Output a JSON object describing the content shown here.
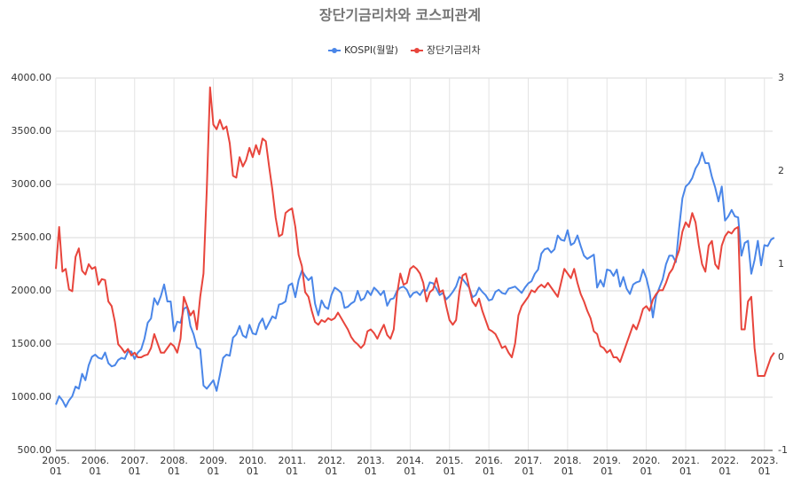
{
  "chart_data": {
    "type": "line",
    "title": "장단기금리차와 코스피관계",
    "categories": [
      "2005.\n01",
      null,
      null,
      null,
      null,
      null,
      null,
      null,
      null,
      null,
      null,
      null,
      "2006.\n01",
      null,
      null,
      null,
      null,
      null,
      null,
      null,
      null,
      null,
      null,
      null,
      "2007.\n01",
      null,
      null,
      null,
      null,
      null,
      null,
      null,
      null,
      null,
      null,
      null,
      "2008.\n01",
      null,
      null,
      null,
      null,
      null,
      null,
      null,
      null,
      null,
      null,
      null,
      "2009.\n01",
      null,
      null,
      null,
      null,
      null,
      null,
      null,
      null,
      null,
      null,
      null,
      "2010.\n01",
      null,
      null,
      null,
      null,
      null,
      null,
      null,
      null,
      null,
      null,
      null,
      "2011.\n01",
      null,
      null,
      null,
      null,
      null,
      null,
      null,
      null,
      null,
      null,
      null,
      "2012.\n01",
      null,
      null,
      null,
      null,
      null,
      null,
      null,
      null,
      null,
      null,
      null,
      "2013.\n01",
      null,
      null,
      null,
      null,
      null,
      null,
      null,
      null,
      null,
      null,
      null,
      "2014.\n01",
      null,
      null,
      null,
      null,
      null,
      null,
      null,
      null,
      null,
      null,
      null,
      "2015.\n01",
      null,
      null,
      null,
      null,
      null,
      null,
      null,
      null,
      null,
      null,
      null,
      "2016.\n01",
      null,
      null,
      null,
      null,
      null,
      null,
      null,
      null,
      null,
      null,
      null,
      "2017.\n01",
      null,
      null,
      null,
      null,
      null,
      null,
      null,
      null,
      null,
      null,
      null,
      "2018.\n01",
      null,
      null,
      null,
      null,
      null,
      null,
      null,
      null,
      null,
      null,
      null,
      "2019.\n01",
      null,
      null,
      null,
      null,
      null,
      null,
      null,
      null,
      null,
      null,
      null,
      "2020.\n01",
      null,
      null,
      null,
      null,
      null,
      null,
      null,
      null,
      null,
      null,
      null,
      "2021.\n01",
      null,
      null,
      null,
      null,
      null,
      null,
      null,
      null,
      null,
      null,
      null,
      "2022.\n01",
      null,
      null,
      null,
      null,
      null,
      null,
      null,
      null,
      null,
      null,
      null,
      "2023.\n01",
      null,
      null,
      null
    ],
    "series": [
      {
        "name": "KOSPI(월말)",
        "color": "#4a86e8",
        "axis": "y",
        "values": [
          930,
          1010,
          970,
          910,
          970,
          1010,
          1100,
          1080,
          1220,
          1160,
          1300,
          1380,
          1400,
          1370,
          1360,
          1420,
          1320,
          1290,
          1300,
          1350,
          1370,
          1360,
          1430,
          1430,
          1360,
          1420,
          1450,
          1550,
          1700,
          1740,
          1930,
          1870,
          1950,
          2060,
          1900,
          1900,
          1620,
          1710,
          1700,
          1830,
          1850,
          1670,
          1590,
          1470,
          1450,
          1110,
          1080,
          1120,
          1160,
          1060,
          1210,
          1370,
          1400,
          1390,
          1560,
          1590,
          1670,
          1580,
          1560,
          1680,
          1600,
          1590,
          1690,
          1740,
          1640,
          1700,
          1760,
          1740,
          1870,
          1880,
          1900,
          2050,
          2070,
          1940,
          2100,
          2190,
          2140,
          2100,
          2130,
          1880,
          1770,
          1910,
          1850,
          1830,
          1960,
          2030,
          2010,
          1980,
          1840,
          1850,
          1880,
          1900,
          2000,
          1910,
          1930,
          2000,
          1960,
          2030,
          2000,
          1960,
          2000,
          1860,
          1920,
          1930,
          2000,
          2030,
          2040,
          2010,
          1940,
          1980,
          1990,
          1960,
          2010,
          2000,
          2080,
          2070,
          2020,
          1960,
          1980,
          1920,
          1950,
          1990,
          2040,
          2130,
          2110,
          2070,
          2030,
          1940,
          1960,
          2030,
          1990,
          1960,
          1910,
          1920,
          1990,
          2010,
          1980,
          1970,
          2020,
          2030,
          2040,
          2010,
          1980,
          2030,
          2070,
          2090,
          2160,
          2200,
          2350,
          2390,
          2400,
          2360,
          2390,
          2520,
          2480,
          2470,
          2570,
          2430,
          2450,
          2520,
          2420,
          2330,
          2300,
          2320,
          2340,
          2030,
          2100,
          2040,
          2200,
          2190,
          2140,
          2200,
          2040,
          2130,
          2020,
          1970,
          2060,
          2080,
          2090,
          2200,
          2120,
          1990,
          1750,
          1950,
          2030,
          2110,
          2250,
          2330,
          2330,
          2270,
          2590,
          2870,
          2980,
          3010,
          3060,
          3150,
          3200,
          3300,
          3200,
          3200,
          3070,
          2970,
          2840,
          2980,
          2660,
          2700,
          2760,
          2700,
          2690,
          2330,
          2450,
          2470,
          2160,
          2290,
          2470,
          2240,
          2430,
          2420,
          2480,
          2500
        ]
      },
      {
        "name": "장단기금리차",
        "color": "#e8453c",
        "axis": "y2",
        "values": [
          0.95,
          1.4,
          0.92,
          0.95,
          0.73,
          0.71,
          1.08,
          1.17,
          0.93,
          0.89,
          1.0,
          0.95,
          0.97,
          0.78,
          0.84,
          0.83,
          0.6,
          0.55,
          0.38,
          0.14,
          0.1,
          0.05,
          0.09,
          0.02,
          0.05,
          0.0,
          0.0,
          0.02,
          0.03,
          0.1,
          0.25,
          0.15,
          0.05,
          0.05,
          0.1,
          0.15,
          0.12,
          0.05,
          0.2,
          0.65,
          0.55,
          0.45,
          0.5,
          0.3,
          0.65,
          0.9,
          1.8,
          2.9,
          2.5,
          2.45,
          2.55,
          2.45,
          2.48,
          2.3,
          1.95,
          1.93,
          2.15,
          2.05,
          2.12,
          2.25,
          2.15,
          2.28,
          2.18,
          2.35,
          2.32,
          2.05,
          1.8,
          1.5,
          1.3,
          1.32,
          1.55,
          1.58,
          1.6,
          1.4,
          1.1,
          0.98,
          0.7,
          0.65,
          0.5,
          0.38,
          0.35,
          0.4,
          0.38,
          0.42,
          0.4,
          0.42,
          0.48,
          0.42,
          0.36,
          0.3,
          0.22,
          0.17,
          0.14,
          0.1,
          0.14,
          0.28,
          0.3,
          0.26,
          0.2,
          0.28,
          0.35,
          0.24,
          0.2,
          0.3,
          0.68,
          0.9,
          0.78,
          0.8,
          0.95,
          0.98,
          0.95,
          0.9,
          0.8,
          0.6,
          0.7,
          0.73,
          0.85,
          0.7,
          0.72,
          0.55,
          0.4,
          0.35,
          0.4,
          0.7,
          0.88,
          0.9,
          0.75,
          0.6,
          0.55,
          0.63,
          0.5,
          0.4,
          0.3,
          0.28,
          0.25,
          0.18,
          0.1,
          0.12,
          0.05,
          0.0,
          0.15,
          0.45,
          0.55,
          0.6,
          0.65,
          0.72,
          0.7,
          0.75,
          0.78,
          0.75,
          0.8,
          0.75,
          0.7,
          0.65,
          0.8,
          0.95,
          0.9,
          0.85,
          0.95,
          0.8,
          0.68,
          0.6,
          0.5,
          0.42,
          0.28,
          0.25,
          0.12,
          0.1,
          0.05,
          0.08,
          0.0,
          0.0,
          -0.05,
          0.05,
          0.15,
          0.25,
          0.35,
          0.3,
          0.4,
          0.52,
          0.55,
          0.5,
          0.62,
          0.68,
          0.72,
          0.72,
          0.8,
          0.9,
          0.95,
          1.05,
          1.15,
          1.35,
          1.45,
          1.4,
          1.55,
          1.45,
          1.2,
          1.0,
          0.92,
          1.2,
          1.25,
          1.0,
          0.95,
          1.2,
          1.3,
          1.35,
          1.33,
          1.38,
          1.4,
          0.3,
          0.3,
          0.6,
          0.65,
          0.1,
          -0.2,
          -0.2,
          -0.2,
          -0.1,
          0.0,
          0.05
        ]
      }
    ],
    "ylim": [
      500,
      4000
    ],
    "yticks": [
      {
        "value": 500,
        "label": "500.00"
      },
      {
        "value": 1000,
        "label": "1000.00"
      },
      {
        "value": 1500,
        "label": "1500.00"
      },
      {
        "value": 2000,
        "label": "2000.00"
      },
      {
        "value": 2500,
        "label": "2500.00"
      },
      {
        "value": 3000,
        "label": "3000.00"
      },
      {
        "value": 3500,
        "label": "3500.00"
      },
      {
        "value": 4000,
        "label": "4000.00"
      }
    ],
    "y2lim": [
      -1,
      3
    ],
    "y2ticks": [
      -1,
      0,
      1,
      2,
      3
    ],
    "grid": true,
    "legend": "top"
  }
}
